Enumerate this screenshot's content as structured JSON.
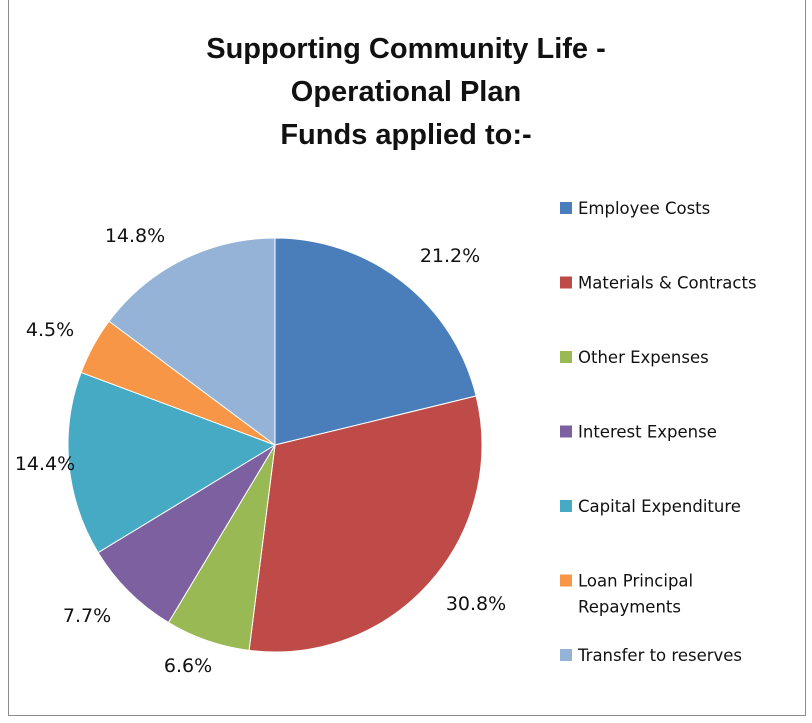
{
  "chart_data": {
    "type": "pie",
    "title_lines": [
      "Supporting Community Life -",
      "Operational Plan",
      "Funds applied to:-"
    ],
    "slices": [
      {
        "label": "Employee Costs",
        "value": 21.2,
        "display": "21.2%",
        "color": "#4a7ebb"
      },
      {
        "label": "Materials & Contracts",
        "value": 30.8,
        "display": "30.8%",
        "color": "#be4b48"
      },
      {
        "label": "Other Expenses",
        "value": 6.6,
        "display": "6.6%",
        "color": "#98b954"
      },
      {
        "label": "Interest Expense",
        "value": 7.7,
        "display": "7.7%",
        "color": "#7d60a0"
      },
      {
        "label": "Capital Expenditure",
        "value": 14.4,
        "display": "14.4%",
        "color": "#46aac5"
      },
      {
        "label": "Loan Principal Repayments",
        "value": 4.5,
        "display": "4.5%",
        "color": "#f79646",
        "label_lines": [
          "Loan Principal",
          "Repayments"
        ]
      },
      {
        "label": "Transfer to reserves",
        "value": 14.8,
        "display": "14.8%",
        "color": "#95b3d7"
      }
    ],
    "legend_placement": "right",
    "start_angle": "12 o'clock",
    "direction": "clockwise"
  }
}
